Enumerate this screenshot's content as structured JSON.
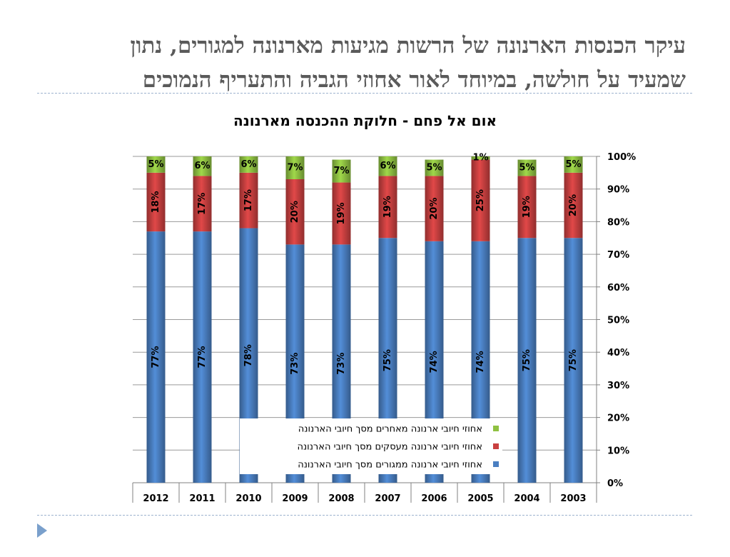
{
  "slide": {
    "title_line1": "עיקר הכנסות הארנונה של הרשות מגיעות מארנונה למגורים, נתון",
    "title_line2": "שמעיד על חולשה, במיוחד לאור אחוזי הגביה והתעריף הנמוכים"
  },
  "chart_data": {
    "type": "bar",
    "stacked": true,
    "title": "אום אל פחם - חלוקת ההכנסה מארנונה",
    "categories": [
      "2012",
      "2011",
      "2010",
      "2009",
      "2008",
      "2007",
      "2006",
      "2005",
      "2004",
      "2003"
    ],
    "series": [
      {
        "name": "אחוזי חיובי ארנונה ממגורים מסך חיובי הארנונה",
        "color": "#4a7fc1",
        "values": [
          77,
          77,
          78,
          73,
          73,
          75,
          74,
          74,
          75,
          75
        ],
        "labels": [
          "77%",
          "77%",
          "78%",
          "73%",
          "73%",
          "75%",
          "74%",
          "74%",
          "75%",
          "75%"
        ]
      },
      {
        "name": "אחוזי חיובי ארנונה מעסקים מסך חיובי הארנונה",
        "color": "#c94040",
        "values": [
          18,
          17,
          17,
          20,
          19,
          19,
          20,
          25,
          19,
          20
        ],
        "labels": [
          "18%",
          "17%",
          "17%",
          "20%",
          "19%",
          "19%",
          "20%",
          "25%",
          "19%",
          "20%"
        ]
      },
      {
        "name": "אחוזי חיובי ארנונה מאחרים מסך חיובי הארנונה",
        "color": "#8fc142",
        "values": [
          5,
          6,
          6,
          7,
          7,
          6,
          5,
          1,
          5,
          5
        ],
        "labels": [
          "5%",
          "6%",
          "6%",
          "7%",
          "7%",
          "6%",
          "5%",
          "1%",
          "5%",
          "5%"
        ]
      }
    ],
    "ylim": [
      0,
      100
    ],
    "yticks": [
      "0%",
      "10%",
      "20%",
      "30%",
      "40%",
      "50%",
      "60%",
      "70%",
      "80%",
      "90%",
      "100%"
    ],
    "grid": true,
    "y_axis_side": "right",
    "legend_position": "bottom-center-inside"
  }
}
